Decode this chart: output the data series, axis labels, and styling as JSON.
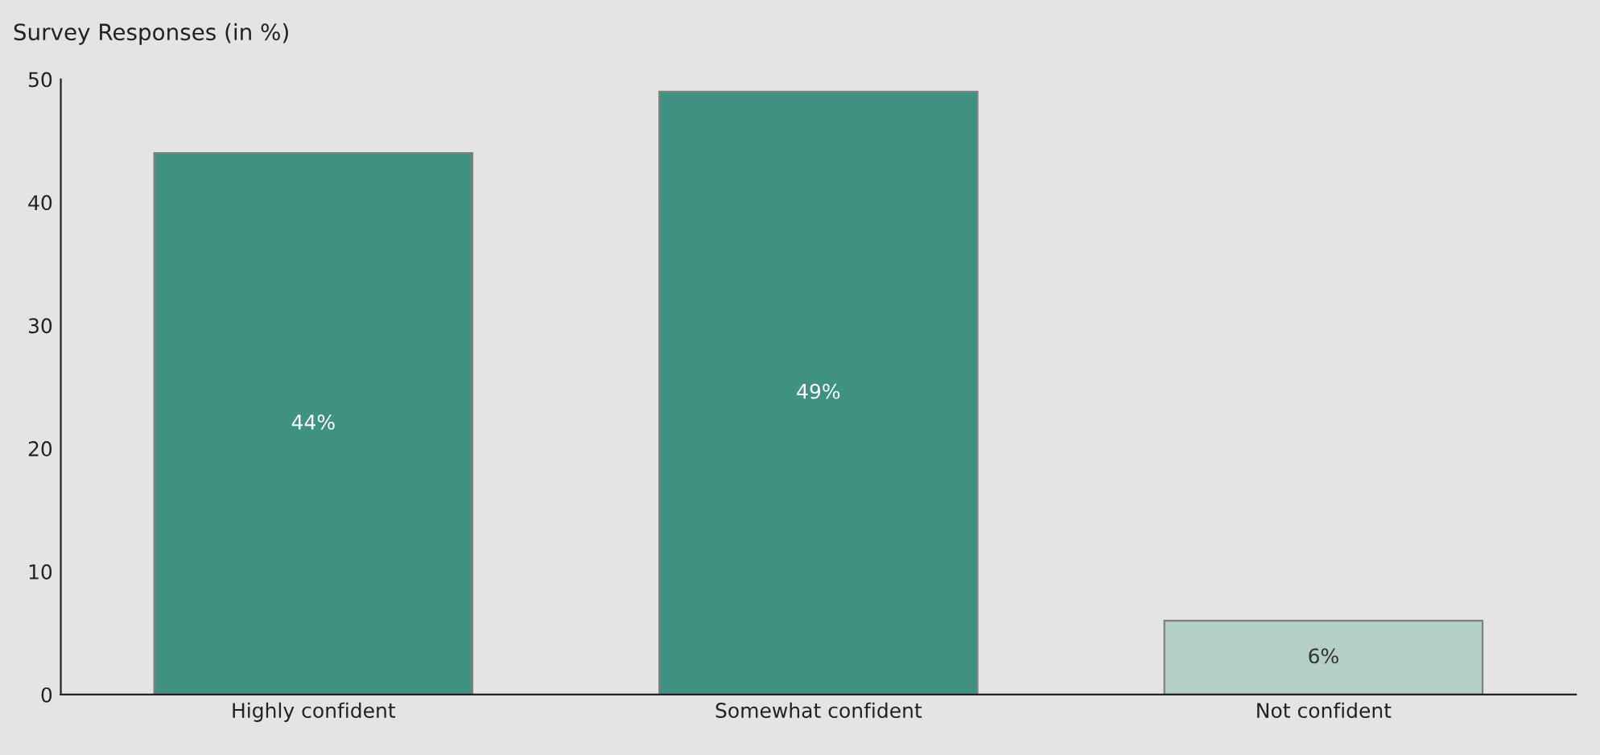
{
  "chart_data": {
    "type": "bar",
    "title": "Survey Responses (in %)",
    "categories": [
      "Highly confident",
      "Somewhat confident",
      "Not confident"
    ],
    "values": [
      44,
      49,
      6
    ],
    "colors": [
      "#3f9282",
      "#3f9282",
      "#b4cfc5"
    ],
    "value_labels": [
      "44%",
      "49%",
      "6%"
    ],
    "ylim": [
      0,
      50
    ],
    "yticks": [
      0,
      10,
      20,
      30,
      40,
      50
    ],
    "grid": false
  }
}
